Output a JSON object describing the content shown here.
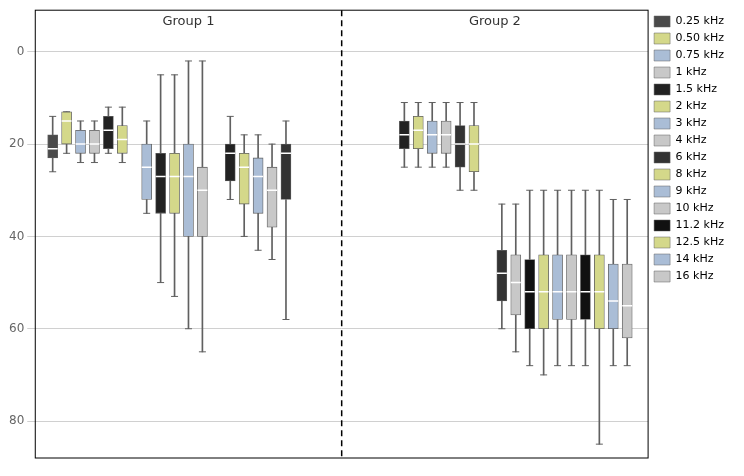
{
  "chart_data": {
    "type": "box",
    "series": [
      {
        "name": "0.25 kHz",
        "color": "#4a4a4a"
      },
      {
        "name": "0.50 kHz",
        "color": "#d4d88a"
      },
      {
        "name": "0.75 kHz",
        "color": "#aabdd6"
      },
      {
        "name": "1 kHz",
        "color": "#c8c8c8"
      },
      {
        "name": "1.5 kHz",
        "color": "#222222"
      },
      {
        "name": "2 kHz",
        "color": "#d4d88a"
      },
      {
        "name": "3 kHz",
        "color": "#aabdd6"
      },
      {
        "name": "4 kHz",
        "color": "#c8c8c8"
      },
      {
        "name": "6 kHz",
        "color": "#333333"
      },
      {
        "name": "8 kHz",
        "color": "#d4d88a"
      },
      {
        "name": "9 kHz",
        "color": "#aabdd6"
      },
      {
        "name": "10 kHz",
        "color": "#c8c8c8"
      },
      {
        "name": "11.2 kHz",
        "color": "#111111"
      },
      {
        "name": "12.5 kHz",
        "color": "#d4d88a"
      },
      {
        "name": "14 kHz",
        "color": "#aabdd6"
      },
      {
        "name": "16 kHz",
        "color": "#c8c8c8"
      }
    ],
    "boxes": [
      {
        "x": 2.5,
        "whisker_low": 14,
        "q1": 18,
        "median": 21,
        "q3": 23,
        "whisker_high": 26,
        "color": "#4a4a4a"
      },
      {
        "x": 4.5,
        "whisker_low": 13,
        "q1": 13,
        "median": 15,
        "q3": 20,
        "whisker_high": 22,
        "color": "#d4d88a"
      },
      {
        "x": 6.5,
        "whisker_low": 15,
        "q1": 17,
        "median": 20,
        "q3": 22,
        "whisker_high": 24,
        "color": "#aabdd6"
      },
      {
        "x": 8.5,
        "whisker_low": 15,
        "q1": 17,
        "median": 20,
        "q3": 22,
        "whisker_high": 24,
        "color": "#c8c8c8"
      },
      {
        "x": 10.5,
        "whisker_low": 12,
        "q1": 14,
        "median": 17,
        "q3": 21,
        "whisker_high": 22,
        "color": "#222222"
      },
      {
        "x": 12.5,
        "whisker_low": 12,
        "q1": 16,
        "median": 19,
        "q3": 22,
        "whisker_high": 24,
        "color": "#d4d88a"
      },
      {
        "x": 16.0,
        "whisker_low": 15,
        "q1": 20,
        "median": 25,
        "q3": 32,
        "whisker_high": 35,
        "color": "#aabdd6"
      },
      {
        "x": 18.0,
        "whisker_low": 5,
        "q1": 22,
        "median": 27,
        "q3": 35,
        "whisker_high": 50,
        "color": "#222222"
      },
      {
        "x": 20.0,
        "whisker_low": 5,
        "q1": 22,
        "median": 27,
        "q3": 35,
        "whisker_high": 53,
        "color": "#d4d88a"
      },
      {
        "x": 22.0,
        "whisker_low": 2,
        "q1": 20,
        "median": 27,
        "q3": 40,
        "whisker_high": 60,
        "color": "#aabdd6"
      },
      {
        "x": 24.0,
        "whisker_low": 2,
        "q1": 25,
        "median": 30,
        "q3": 40,
        "whisker_high": 65,
        "color": "#c8c8c8"
      },
      {
        "x": 28.0,
        "whisker_low": 14,
        "q1": 20,
        "median": 22,
        "q3": 28,
        "whisker_high": 32,
        "color": "#222222"
      },
      {
        "x": 30.0,
        "whisker_low": 18,
        "q1": 22,
        "median": 25,
        "q3": 33,
        "whisker_high": 40,
        "color": "#d4d88a"
      },
      {
        "x": 32.0,
        "whisker_low": 18,
        "q1": 23,
        "median": 27,
        "q3": 35,
        "whisker_high": 43,
        "color": "#aabdd6"
      },
      {
        "x": 34.0,
        "whisker_low": 20,
        "q1": 25,
        "median": 30,
        "q3": 38,
        "whisker_high": 45,
        "color": "#c8c8c8"
      },
      {
        "x": 36.0,
        "whisker_low": 15,
        "q1": 20,
        "median": 22,
        "q3": 32,
        "whisker_high": 58,
        "color": "#333333"
      },
      {
        "x": 53.0,
        "whisker_low": 11,
        "q1": 15,
        "median": 18,
        "q3": 21,
        "whisker_high": 25,
        "color": "#222222"
      },
      {
        "x": 55.0,
        "whisker_low": 11,
        "q1": 14,
        "median": 17,
        "q3": 21,
        "whisker_high": 25,
        "color": "#d4d88a"
      },
      {
        "x": 57.0,
        "whisker_low": 11,
        "q1": 15,
        "median": 18,
        "q3": 22,
        "whisker_high": 25,
        "color": "#aabdd6"
      },
      {
        "x": 59.0,
        "whisker_low": 11,
        "q1": 15,
        "median": 18,
        "q3": 22,
        "whisker_high": 25,
        "color": "#c8c8c8"
      },
      {
        "x": 61.0,
        "whisker_low": 11,
        "q1": 16,
        "median": 20,
        "q3": 25,
        "whisker_high": 30,
        "color": "#333333"
      },
      {
        "x": 63.0,
        "whisker_low": 11,
        "q1": 16,
        "median": 20,
        "q3": 26,
        "whisker_high": 30,
        "color": "#d4d88a"
      },
      {
        "x": 67.0,
        "whisker_low": 33,
        "q1": 43,
        "median": 48,
        "q3": 54,
        "whisker_high": 60,
        "color": "#333333"
      },
      {
        "x": 69.0,
        "whisker_low": 33,
        "q1": 44,
        "median": 50,
        "q3": 57,
        "whisker_high": 65,
        "color": "#c8c8c8"
      },
      {
        "x": 71.0,
        "whisker_low": 30,
        "q1": 45,
        "median": 52,
        "q3": 60,
        "whisker_high": 68,
        "color": "#111111"
      },
      {
        "x": 73.0,
        "whisker_low": 30,
        "q1": 44,
        "median": 52,
        "q3": 60,
        "whisker_high": 70,
        "color": "#d4d88a"
      },
      {
        "x": 75.0,
        "whisker_low": 30,
        "q1": 44,
        "median": 52,
        "q3": 58,
        "whisker_high": 68,
        "color": "#aabdd6"
      },
      {
        "x": 77.0,
        "whisker_low": 30,
        "q1": 44,
        "median": 52,
        "q3": 58,
        "whisker_high": 68,
        "color": "#c8c8c8"
      },
      {
        "x": 79.0,
        "whisker_low": 30,
        "q1": 44,
        "median": 52,
        "q3": 58,
        "whisker_high": 68,
        "color": "#111111"
      },
      {
        "x": 81.0,
        "whisker_low": 30,
        "q1": 44,
        "median": 52,
        "q3": 60,
        "whisker_high": 85,
        "color": "#d4d88a"
      },
      {
        "x": 83.0,
        "whisker_low": 32,
        "q1": 46,
        "median": 54,
        "q3": 60,
        "whisker_high": 68,
        "color": "#aabdd6"
      },
      {
        "x": 85.0,
        "whisker_low": 32,
        "q1": 46,
        "median": 55,
        "q3": 62,
        "whisker_high": 68,
        "color": "#c8c8c8"
      }
    ],
    "xlim": [
      0,
      88
    ],
    "ylim": [
      88,
      -9
    ],
    "yticks": [
      0,
      20,
      40,
      60,
      80
    ],
    "grid": true,
    "tick_labels": "y",
    "legend": "right",
    "annotations": [
      {
        "text": "Group 1",
        "x": 22,
        "y": -6.5
      },
      {
        "text": "Group 2",
        "x": 66,
        "y": -6.5
      }
    ],
    "vlines": [
      44
    ]
  }
}
